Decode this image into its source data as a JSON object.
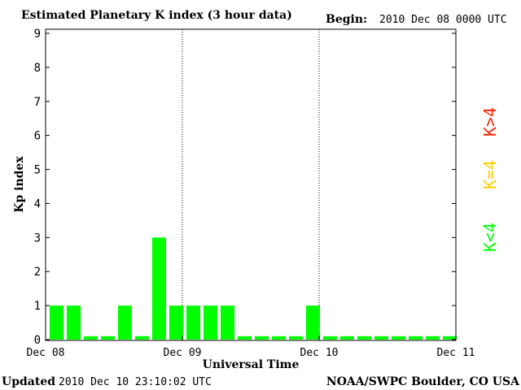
{
  "header": {
    "title": "Estimated Planetary K index (3 hour data)",
    "begin_label": "Begin:",
    "begin_value": "2010 Dec 08 0000 UTC"
  },
  "footer": {
    "updated_label": "Updated",
    "updated_value": "2010 Dec 10 23:10:02 UTC",
    "credit": "NOAA/SWPC Boulder, CO USA"
  },
  "legend": {
    "high": "K>4",
    "mid": "K=4",
    "low": "K<4"
  },
  "colors": {
    "low": "#00ff00",
    "mid": "#ffcc00",
    "high": "#ff2200",
    "axis": "#000000"
  },
  "chart_data": {
    "type": "bar",
    "title": "Estimated Planetary K index (3 hour data)",
    "xlabel": "Universal Time",
    "ylabel": "Kp index",
    "ylim": [
      0,
      9
    ],
    "yticks": [
      "0",
      "1",
      "2",
      "3",
      "4",
      "5",
      "6",
      "7",
      "8",
      "9"
    ],
    "xticks": [
      "Dec 08",
      "Dec 09",
      "Dec 10",
      "Dec 11"
    ],
    "day_separators": [
      "Dec 09",
      "Dec 10"
    ],
    "interval_hours": 3,
    "series": [
      {
        "values": [
          1,
          1,
          0,
          0,
          1,
          0,
          3,
          1,
          1,
          1,
          1,
          0,
          0,
          0,
          0,
          1,
          0,
          0,
          0,
          0,
          0,
          0,
          0,
          0
        ]
      }
    ]
  }
}
